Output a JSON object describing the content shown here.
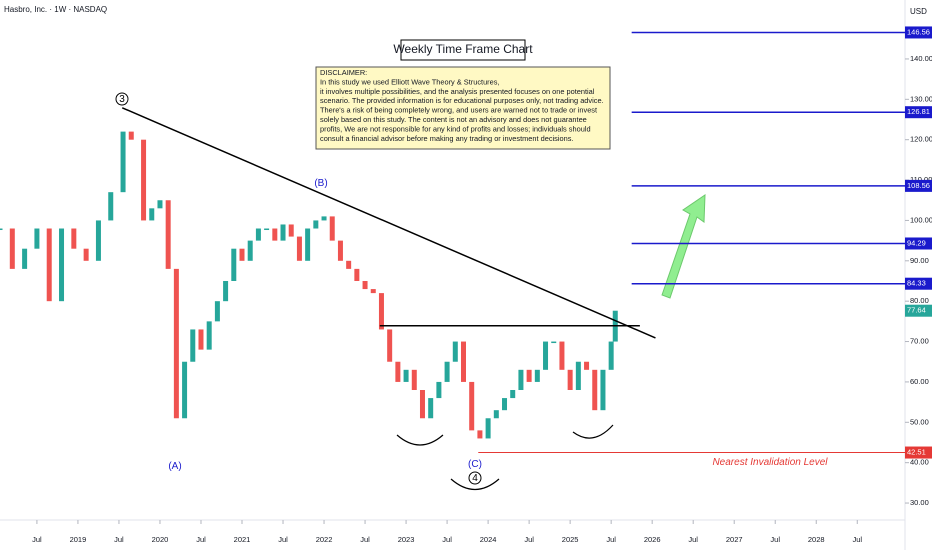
{
  "chart_data": {
    "type": "candlestick",
    "header": "Hasbro, Inc. · 1W · NASDAQ",
    "currency": "USD",
    "title": "Weekly Time Frame Chart",
    "disclaimer": [
      "DISCLAIMER:",
      "In this study we used Elliott Wave Theory & Structures,",
      "it involves multiple possibilities, and the analysis presented focuses on one potential",
      "scenario. The provided information is for educational purposes only, not trading advice.",
      "There's a risk of being completely wrong, and users are warned not to trade or invest",
      "solely based on this study. The content is not an advisory and does not guarantee",
      "profits, We are not responsible for any kind of profits and losses; individuals should",
      "consult a financial advisor before making any trading or investment decisions."
    ],
    "x": [
      2018.05,
      2018.2,
      2018.35,
      2018.5,
      2018.65,
      2018.8,
      2018.95,
      2019.1,
      2019.25,
      2019.4,
      2019.55,
      2019.65,
      2019.8,
      2019.9,
      2020.0,
      2020.1,
      2020.2,
      2020.3,
      2020.4,
      2020.5,
      2020.6,
      2020.7,
      2020.8,
      2020.9,
      2021.0,
      2021.1,
      2021.2,
      2021.3,
      2021.4,
      2021.5,
      2021.6,
      2021.7,
      2021.8,
      2021.9,
      2022.0,
      2022.1,
      2022.2,
      2022.3,
      2022.4,
      2022.5,
      2022.6,
      2022.7,
      2022.8,
      2022.9,
      2023.0,
      2023.1,
      2023.2,
      2023.3,
      2023.4,
      2023.5,
      2023.6,
      2023.7,
      2023.8,
      2023.9,
      2024.0,
      2024.1,
      2024.2,
      2024.3,
      2024.4,
      2024.5,
      2024.6,
      2024.7,
      2024.8,
      2024.9,
      2025.0,
      2025.1,
      2025.2,
      2025.3,
      2025.4,
      2025.5,
      2025.55
    ],
    "close": [
      98,
      88,
      93,
      98,
      80,
      98,
      93,
      90,
      100,
      107,
      122,
      120,
      100,
      103,
      105,
      88,
      51,
      65,
      73,
      68,
      75,
      80,
      85,
      93,
      90,
      95,
      98,
      98,
      95,
      99,
      96,
      90,
      98,
      100,
      101,
      95,
      90,
      88,
      85,
      83,
      82,
      73,
      65,
      60,
      63,
      58,
      51,
      56,
      60,
      65,
      70,
      60,
      48,
      46,
      51,
      53,
      56,
      58,
      63,
      60,
      63,
      70,
      70,
      63,
      58,
      65,
      63,
      53,
      63,
      70,
      77.64
    ],
    "up_color": "#26a69a",
    "down_color": "#ef5350",
    "xlim": [
      2018.05,
      2028.96
    ],
    "ylim": [
      25.8,
      154.6
    ],
    "xticks": [
      {
        "value": 2018.5,
        "label": "Jul"
      },
      2019,
      {
        "value": 2019.5,
        "label": "Jul"
      },
      2020,
      {
        "value": 2020.5,
        "label": "Jul"
      },
      2021,
      {
        "value": 2021.5,
        "label": "Jul"
      },
      2022,
      {
        "value": 2022.5,
        "label": "Jul"
      },
      2023,
      {
        "value": 2023.5,
        "label": "Jul"
      },
      2024,
      {
        "value": 2024.5,
        "label": "Jul"
      },
      2025,
      {
        "value": 2025.5,
        "label": "Jul"
      },
      2026,
      {
        "value": 2026.5,
        "label": "Jul"
      },
      2027,
      {
        "value": 2027.5,
        "label": "Jul"
      },
      2028,
      {
        "value": 2028.5,
        "label": "Jul"
      }
    ],
    "yticks": [
      {
        "value": 30,
        "label": "30.00"
      },
      {
        "value": 40,
        "label": "40.00"
      },
      {
        "value": 50,
        "label": "50.00"
      },
      {
        "value": 60,
        "label": "60.00"
      },
      {
        "value": 70,
        "label": "70.00"
      },
      {
        "value": 80,
        "label": "80.00"
      },
      {
        "value": 90,
        "label": "90.00"
      },
      {
        "value": 100,
        "label": "100.00"
      },
      {
        "value": 110,
        "label": "110.00"
      },
      {
        "value": 120,
        "label": "120.00"
      },
      {
        "value": 130,
        "label": "130.00"
      },
      {
        "value": 140,
        "label": "140.00"
      }
    ],
    "targets": {
      "color": "#1a1acc",
      "start": 2025.75,
      "values": [
        146.56,
        126.81,
        108.56,
        94.29,
        84.33
      ]
    },
    "invalidation": {
      "value": 42.51,
      "start": 2023.88,
      "color": "#e53935",
      "label": "Nearest Invalidation Level"
    },
    "last_price": 77.64,
    "trendlines": [
      {
        "x": [
          2019.54,
          2026.04
        ],
        "y": [
          127.9,
          70.9
        ]
      },
      {
        "x": [
          2022.68,
          2025.85
        ],
        "y": [
          73.9,
          73.9
        ]
      }
    ],
    "waves": [
      "3",
      "(B)",
      "(A)",
      "(C)",
      "4"
    ]
  }
}
